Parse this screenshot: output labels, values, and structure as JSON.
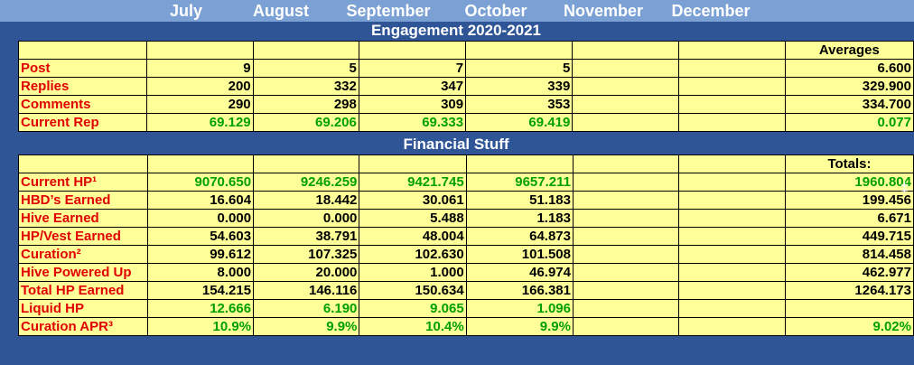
{
  "months": [
    "July",
    "August",
    "September",
    "October",
    "November",
    "December"
  ],
  "engagement": {
    "title": "Engagement 2020-2021",
    "averages_label": "Averages",
    "rows": [
      {
        "label": "Post",
        "values": [
          "9",
          "5",
          "7",
          "5",
          "",
          ""
        ],
        "avg": "6.600",
        "green": false
      },
      {
        "label": "Replies",
        "values": [
          "200",
          "332",
          "347",
          "339",
          "",
          ""
        ],
        "avg": "329.900",
        "green": false
      },
      {
        "label": "Comments",
        "values": [
          "290",
          "298",
          "309",
          "353",
          "",
          ""
        ],
        "avg": "334.700",
        "green": false
      },
      {
        "label": "Current Rep",
        "values": [
          "69.129",
          "69.206",
          "69.333",
          "69.419",
          "",
          ""
        ],
        "avg": "0.077",
        "green": true
      }
    ]
  },
  "financial": {
    "title": "Financial Stuff",
    "totals_label": "Totals:",
    "side_mark": "‡",
    "rows": [
      {
        "label": "Current HP¹",
        "values": [
          "9070.650",
          "9246.259",
          "9421.745",
          "9657.211",
          "",
          ""
        ],
        "total": "1960.804",
        "green": true
      },
      {
        "label": "HBD’s Earned",
        "values": [
          "16.604",
          "18.442",
          "30.061",
          "51.183",
          "",
          ""
        ],
        "total": "199.456",
        "green": false
      },
      {
        "label": "Hive Earned",
        "values": [
          "0.000",
          "0.000",
          "5.488",
          "1.183",
          "",
          ""
        ],
        "total": "6.671",
        "green": false
      },
      {
        "label": "HP/Vest Earned",
        "values": [
          "54.603",
          "38.791",
          "48.004",
          "64.873",
          "",
          ""
        ],
        "total": "449.715",
        "green": false
      },
      {
        "label": "Curation²",
        "values": [
          "99.612",
          "107.325",
          "102.630",
          "101.508",
          "",
          ""
        ],
        "total": "814.458",
        "green": false
      },
      {
        "label": "Hive Powered Up",
        "values": [
          "8.000",
          "20.000",
          "1.000",
          "46.974",
          "",
          ""
        ],
        "total": "462.977",
        "green": false
      },
      {
        "label": "Total HP Earned",
        "values": [
          "154.215",
          "146.116",
          "150.634",
          "166.381",
          "",
          ""
        ],
        "total": "1264.173",
        "green": false
      },
      {
        "label": "Liquid HP",
        "values": [
          "12.666",
          "6.190",
          "9.065",
          "1.096",
          "",
          ""
        ],
        "total": "",
        "green": true
      },
      {
        "label": "Curation APR³",
        "values": [
          "10.9%",
          "9.9%",
          "10.4%",
          "9.9%",
          "",
          ""
        ],
        "total": "9.02%",
        "green": true
      }
    ]
  }
}
